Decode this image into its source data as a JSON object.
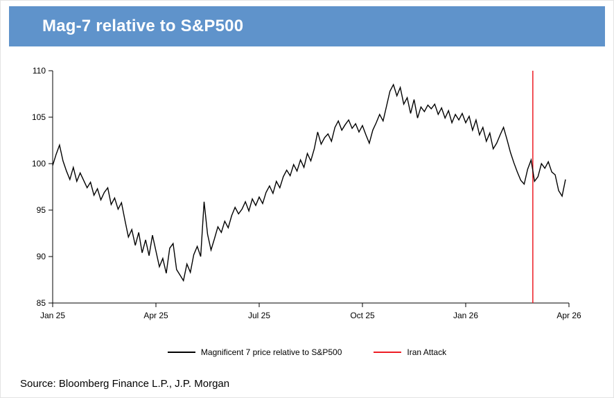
{
  "header": {
    "title": "Mag-7 relative to S&P500"
  },
  "colors": {
    "header_bg": "#5f93cb",
    "header_text": "#ffffff",
    "series_line": "#000000",
    "annotation_line": "#ed1b23",
    "axis": "#000000"
  },
  "legend": {
    "series_label": "Magnificent 7 price relative to S&P500",
    "annotation_label": "Iran Attack"
  },
  "source": "Source: Bloomberg Finance L.P., J.P. Morgan",
  "chart_data": {
    "type": "line",
    "title": "Mag-7 relative to S&P500",
    "xlabel": "",
    "ylabel": "",
    "ylim": [
      85,
      110
    ],
    "yticks": [
      85,
      90,
      95,
      100,
      105,
      110
    ],
    "grid": false,
    "legend_position": "bottom",
    "x_count": 150,
    "xticks": [
      {
        "index": 0,
        "label": "Jan 25"
      },
      {
        "index": 30,
        "label": "Apr 25"
      },
      {
        "index": 60,
        "label": "Jul 25"
      },
      {
        "index": 90,
        "label": "Oct 25"
      },
      {
        "index": 120,
        "label": "Jan 26"
      },
      {
        "index": 150,
        "label": "Apr 26"
      }
    ],
    "series": [
      {
        "name": "Magnificent 7 price relative to S&P500",
        "color": "#000000",
        "values": [
          99.8,
          101.0,
          102.0,
          100.3,
          99.2,
          98.3,
          99.6,
          98.1,
          99.0,
          98.2,
          97.4,
          98.0,
          96.6,
          97.3,
          96.1,
          96.9,
          97.4,
          95.6,
          96.3,
          95.1,
          95.8,
          93.9,
          92.1,
          92.9,
          91.2,
          92.6,
          90.4,
          91.8,
          90.1,
          92.3,
          90.6,
          88.9,
          89.8,
          88.2,
          90.9,
          91.4,
          88.6,
          88.0,
          87.4,
          89.2,
          88.3,
          90.2,
          91.1,
          90.0,
          95.9,
          92.4,
          90.7,
          91.9,
          93.2,
          92.6,
          93.8,
          93.1,
          94.4,
          95.3,
          94.6,
          95.1,
          95.9,
          94.9,
          96.2,
          95.5,
          96.4,
          95.7,
          96.9,
          97.6,
          96.8,
          98.1,
          97.4,
          98.6,
          99.3,
          98.7,
          99.9,
          99.2,
          100.4,
          99.6,
          101.1,
          100.3,
          101.6,
          103.4,
          102.1,
          102.8,
          103.2,
          102.4,
          103.9,
          104.6,
          103.6,
          104.2,
          104.7,
          103.8,
          104.3,
          103.4,
          104.1,
          103.1,
          102.2,
          103.6,
          104.4,
          105.3,
          104.6,
          106.2,
          107.8,
          108.5,
          107.3,
          108.2,
          106.4,
          107.1,
          105.4,
          106.9,
          104.9,
          106.1,
          105.6,
          106.3,
          105.9,
          106.4,
          105.3,
          106.0,
          104.9,
          105.7,
          104.4,
          105.3,
          104.7,
          105.4,
          104.4,
          105.1,
          103.6,
          104.7,
          103.1,
          103.9,
          102.4,
          103.3,
          101.6,
          102.2,
          103.1,
          103.9,
          102.6,
          101.2,
          100.1,
          99.1,
          98.2,
          97.8,
          99.4,
          100.4,
          98.1,
          98.6,
          100.0,
          99.5,
          100.2,
          99.1,
          98.8,
          97.1,
          96.5,
          98.3
        ]
      }
    ],
    "annotation": {
      "type": "vline",
      "label": "Iran Attack",
      "index": 139.5,
      "color": "#ed1b23"
    }
  }
}
